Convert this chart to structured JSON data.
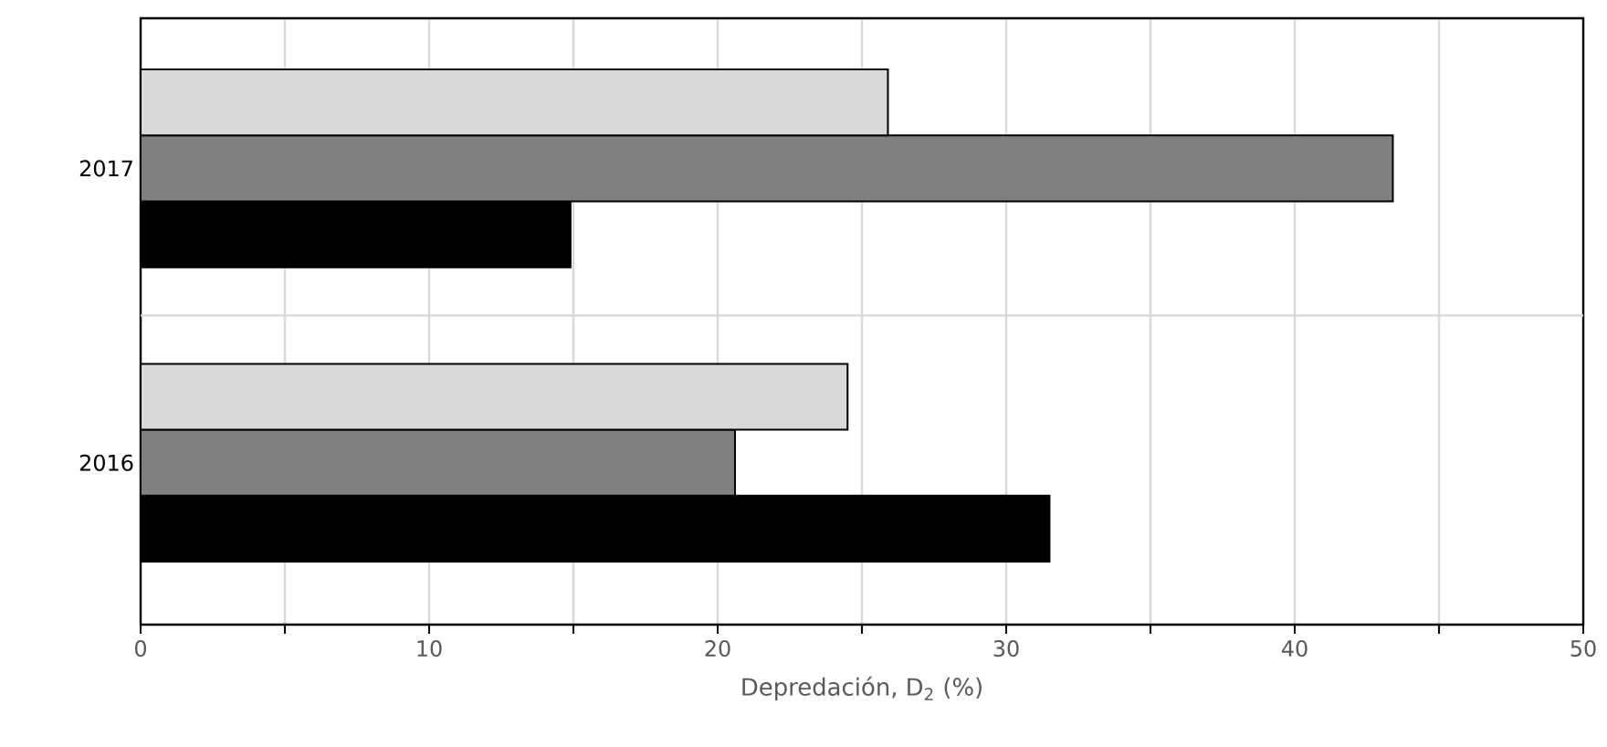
{
  "chart_data": {
    "type": "bar",
    "orientation": "horizontal",
    "categories": [
      "2017",
      "2016"
    ],
    "series": [
      {
        "color": "#000000",
        "values": [
          14.9,
          31.5
        ]
      },
      {
        "color": "#808080",
        "values": [
          43.4,
          20.6
        ]
      },
      {
        "color": "#d9d9d9",
        "values": [
          25.9,
          24.5
        ]
      }
    ],
    "xlabel": "Depredación, D$_{2}$ (%)",
    "xlim": [
      0,
      50
    ],
    "xticks": [
      0,
      {
        "value": 5,
        "label": null
      },
      10,
      {
        "value": 15,
        "label": null
      },
      20,
      {
        "value": 25,
        "label": null
      },
      30,
      {
        "value": 35,
        "label": null
      },
      40,
      {
        "value": 45,
        "label": null
      },
      50
    ],
    "grid": true
  }
}
